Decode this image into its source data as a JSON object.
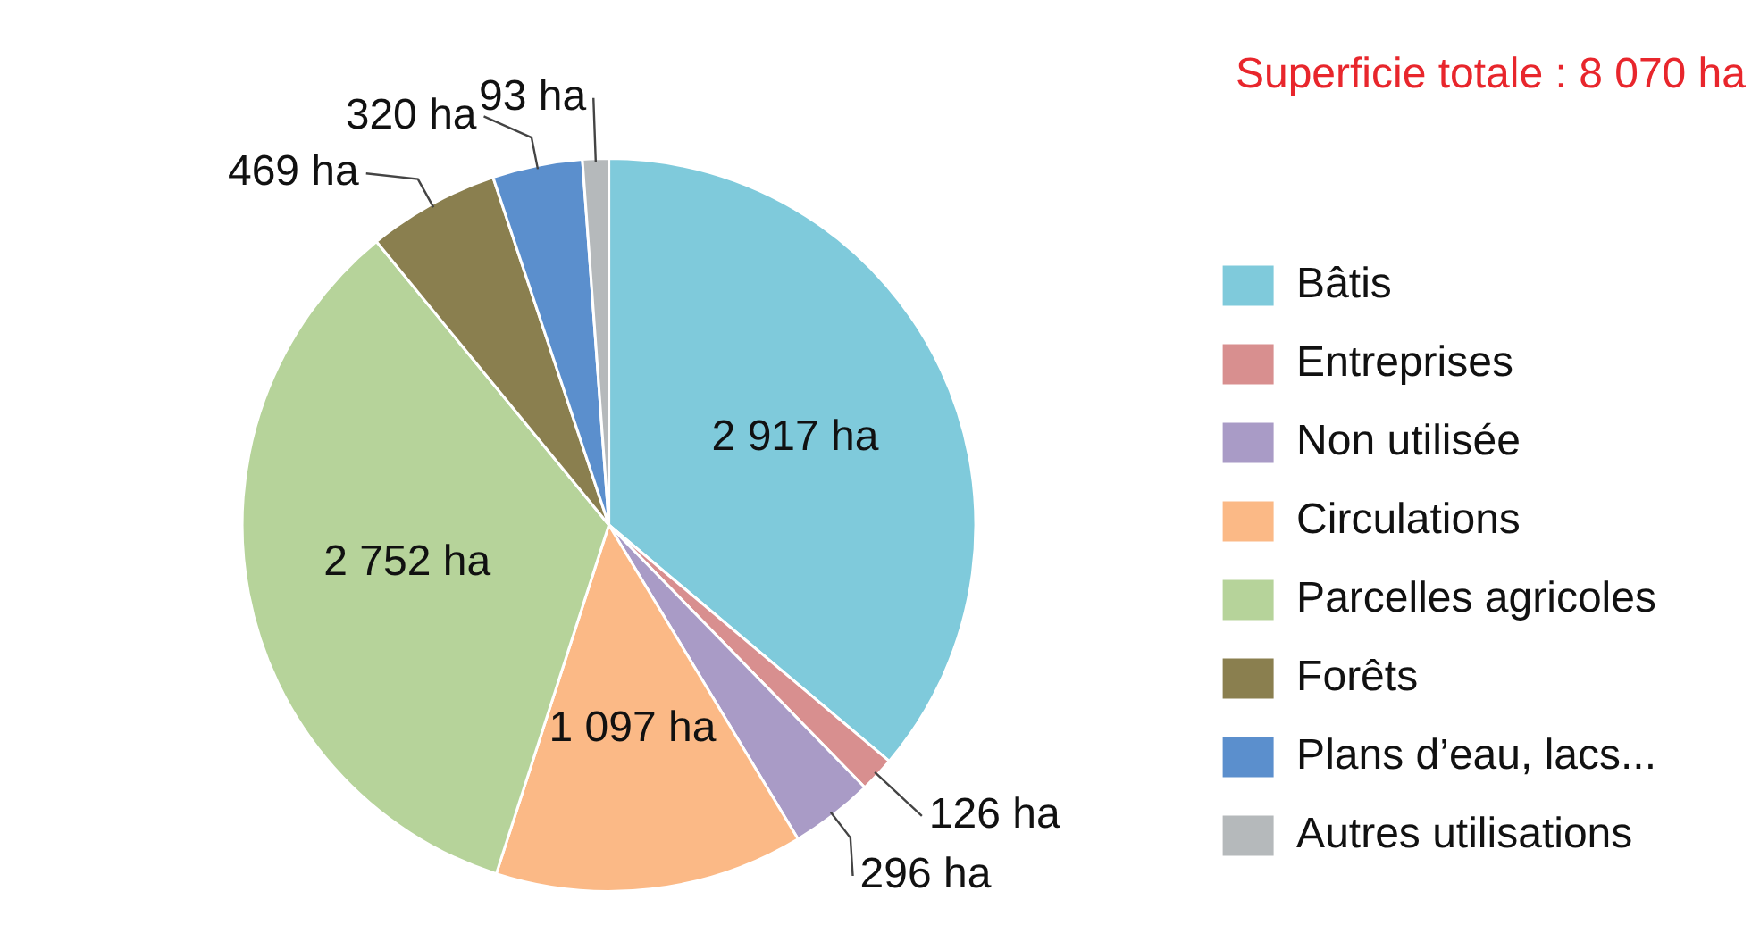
{
  "chart_data": {
    "type": "pie",
    "title": "Superficie totale : 8 070 ha",
    "categories": [
      "Bâtis",
      "Entreprises",
      "Non utilisée",
      "Circulations",
      "Parcelles agricoles",
      "Forêts",
      "Plans d’eau, lacs...",
      "Autres utilisations"
    ],
    "values": [
      2917,
      126,
      296,
      1097,
      2752,
      469,
      320,
      93
    ],
    "colors": [
      "#7fcadb",
      "#d88f8f",
      "#a99bc6",
      "#fbb986",
      "#b6d39a",
      "#8a7f4f",
      "#5b8fcd",
      "#b5b9bb"
    ],
    "value_labels": [
      "2 917 ha",
      "126 ha",
      "296 ha",
      "1 097 ha",
      "2 752 ha",
      "469 ha",
      "320 ha",
      "93 ha"
    ],
    "legend": "right"
  }
}
